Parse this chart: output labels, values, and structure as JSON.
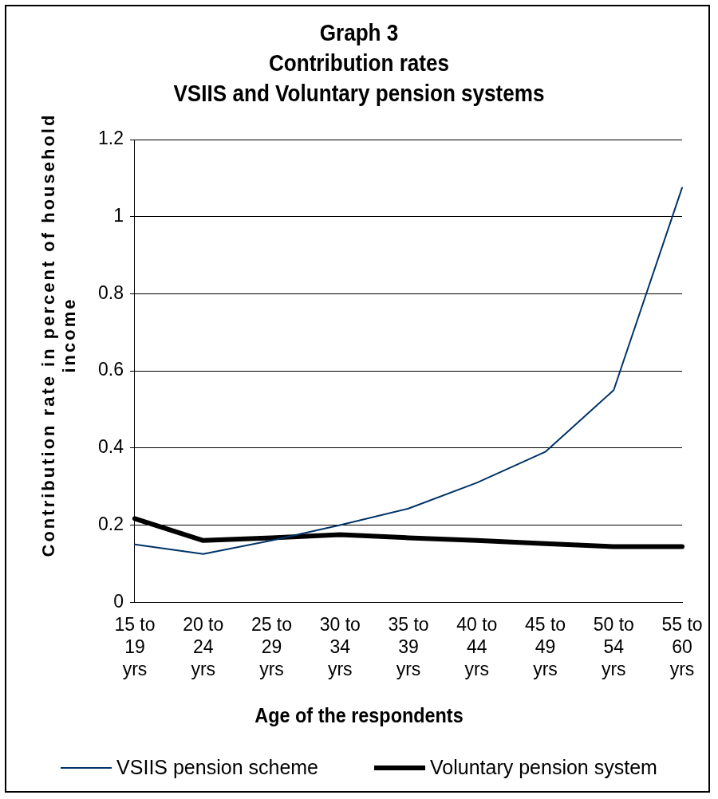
{
  "chart_data": {
    "type": "line",
    "title": [
      "Graph 3",
      "Contribution rates",
      "VSIIS and Voluntary pension systems"
    ],
    "xlabel": "Age of the respondents",
    "ylabel": "Contribution rate in percent of household income",
    "categories": [
      "15 to 19 yrs",
      "20 to 24 yrs",
      "25 to 29 yrs",
      "30 to 34 yrs",
      "35 to 39 yrs",
      "40 to 44 yrs",
      "45 to 49 yrs",
      "50 to 54 yrs",
      "55 to 60 yrs"
    ],
    "series": [
      {
        "name": "VSIIS pension scheme",
        "color": "#003366",
        "values": [
          0.15,
          0.125,
          0.16,
          0.2,
          0.243,
          0.31,
          0.39,
          0.55,
          1.075
        ]
      },
      {
        "name": "Voluntary pension system",
        "color": "#000000",
        "values": [
          0.217,
          0.16,
          0.167,
          0.175,
          0.167,
          0.16,
          0.152,
          0.144,
          0.144
        ]
      }
    ],
    "ylim": [
      0,
      1.2
    ],
    "yticks": [
      0,
      0.2,
      0.4,
      0.6,
      0.8,
      1,
      1.2
    ],
    "grid": "y",
    "legend": "bottom",
    "marker": "none",
    "line_style": "solid"
  }
}
